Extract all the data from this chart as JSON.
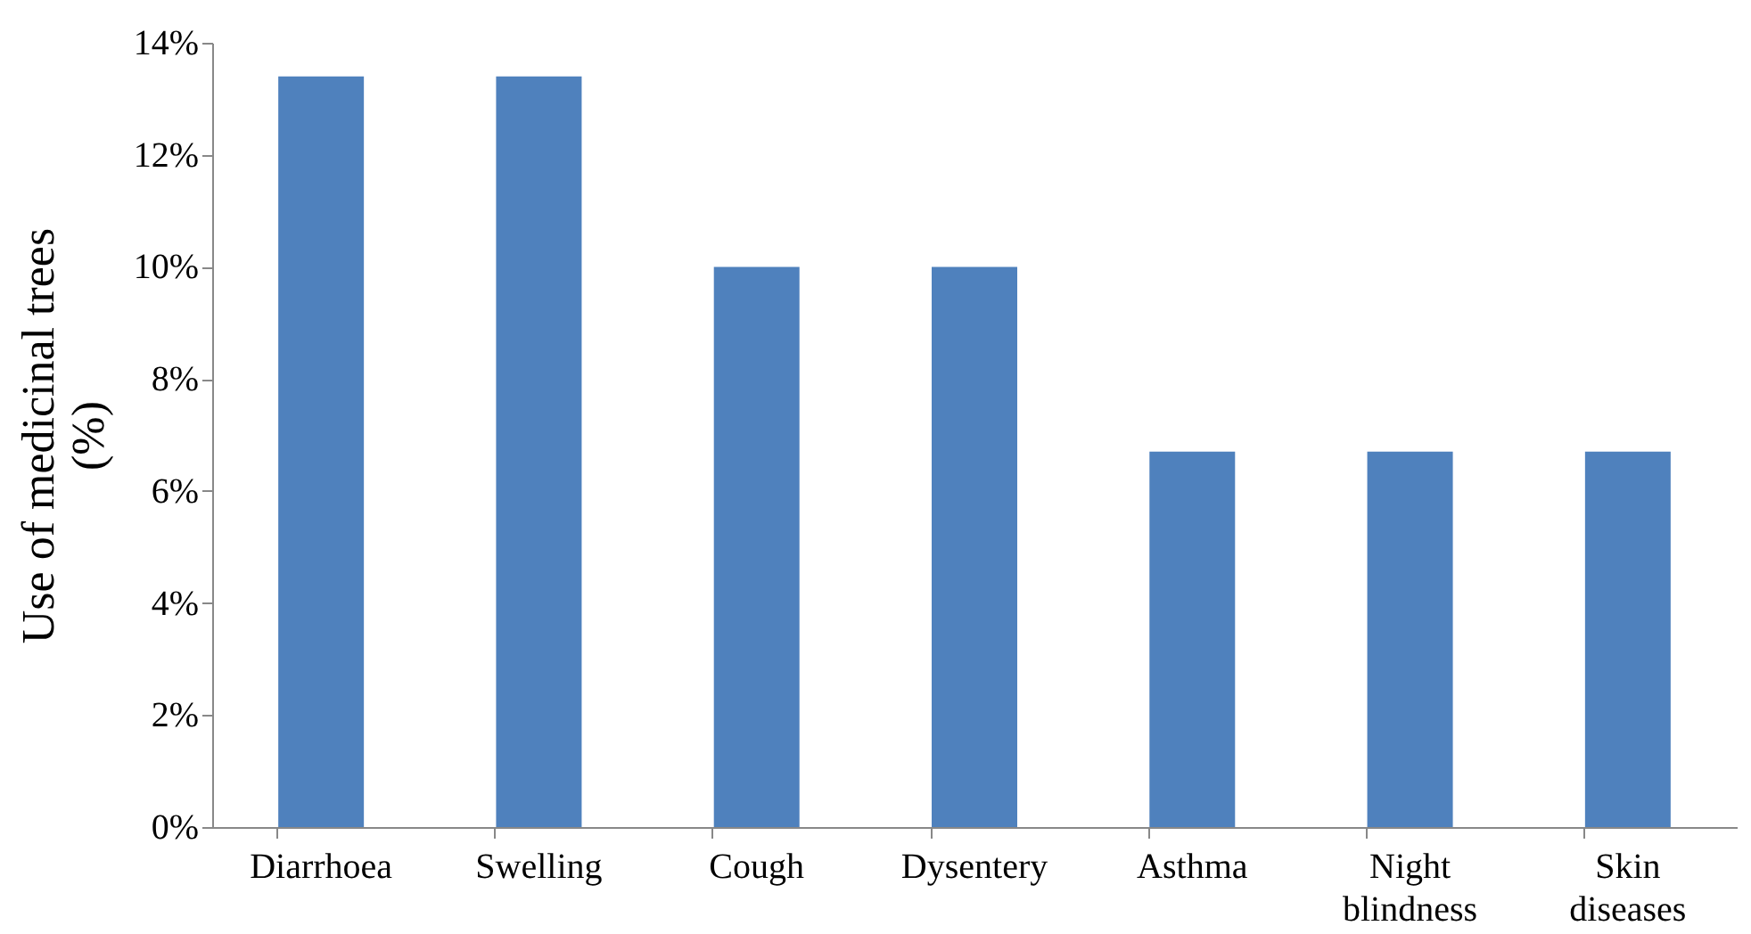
{
  "chart_data": {
    "type": "bar",
    "ylabel": "Use of medicinal trees (%)",
    "categories": [
      "Diarrhoea",
      "Swelling",
      "Cough",
      "Dysentery",
      "Asthma",
      "Night blindness",
      "Skin diseases"
    ],
    "values": [
      13.4,
      13.4,
      10,
      10,
      6.7,
      6.7,
      6.7
    ],
    "color": "#4f81bd",
    "ylim": [
      0,
      14
    ],
    "yticks": [
      {
        "value": 0,
        "label": "0%"
      },
      {
        "value": 2,
        "label": "2%"
      },
      {
        "value": 4,
        "label": "4%"
      },
      {
        "value": 6,
        "label": "6%"
      },
      {
        "value": 8,
        "label": "8%"
      },
      {
        "value": 10,
        "label": "10%"
      },
      {
        "value": 12,
        "label": "12%"
      },
      {
        "value": 14,
        "label": "14%"
      }
    ],
    "grid": false
  }
}
